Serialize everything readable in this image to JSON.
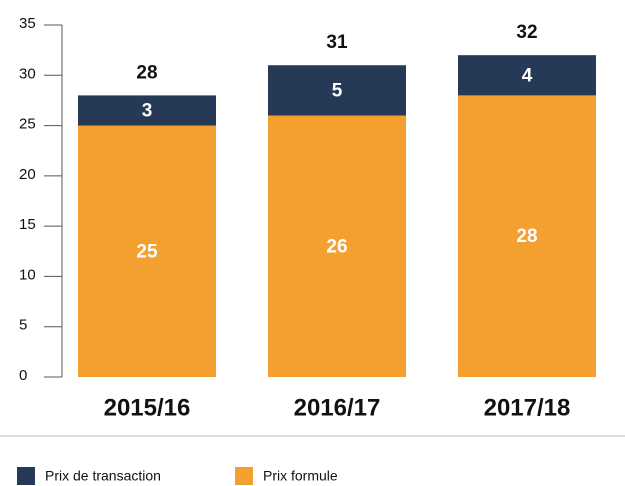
{
  "chart_data": {
    "type": "stacked_bar",
    "categories": [
      "2015/16",
      "2016/17",
      "2017/18"
    ],
    "series": [
      {
        "name": "Prix formule",
        "color": "#f4a030",
        "values": [
          25,
          26,
          28
        ]
      },
      {
        "name": "Prix de transaction",
        "color": "#263956",
        "values": [
          3,
          5,
          4
        ]
      }
    ],
    "totals": [
      28,
      31,
      32
    ],
    "ylim": [
      0,
      35
    ],
    "yticks": [
      0,
      5,
      10,
      15,
      20,
      25,
      30,
      35
    ]
  }
}
